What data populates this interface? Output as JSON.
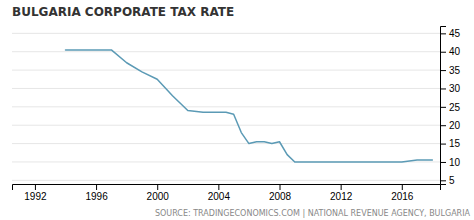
{
  "chart_data": {
    "type": "line",
    "title": "BULGARIA CORPORATE TAX RATE",
    "annotation": "SOURCE: TRADINGECONOMICS.COM | NATIONAL REVENUE AGENCY, BULGARIA",
    "x": [
      1994,
      1995,
      1996,
      1997,
      1998,
      1999,
      2000,
      2001,
      2002,
      2003,
      2003.5,
      2004,
      2004.5,
      2005,
      2005.5,
      2006,
      2006.5,
      2007,
      2007.5,
      2008,
      2008.5,
      2009,
      2010,
      2011,
      2012,
      2013,
      2014,
      2015,
      2016,
      2017,
      2018
    ],
    "values": [
      40.5,
      40.5,
      40.5,
      40.5,
      37,
      34.5,
      32.5,
      28,
      24,
      23.5,
      23.5,
      23.5,
      23.5,
      23,
      18,
      15,
      15.5,
      15.5,
      15,
      15.5,
      12,
      10,
      10,
      10,
      10,
      10,
      10,
      10,
      10,
      10.5,
      10.5
    ],
    "color": "#5b9ab5",
    "xlim": [
      1990.5,
      2018.5
    ],
    "xticks": [
      1992,
      1996,
      2000,
      2004,
      2008,
      2012,
      2016
    ],
    "ylim": [
      4,
      47
    ],
    "yticks": [
      5,
      10,
      15,
      20,
      25,
      30,
      35,
      40,
      45
    ],
    "grid": true
  }
}
